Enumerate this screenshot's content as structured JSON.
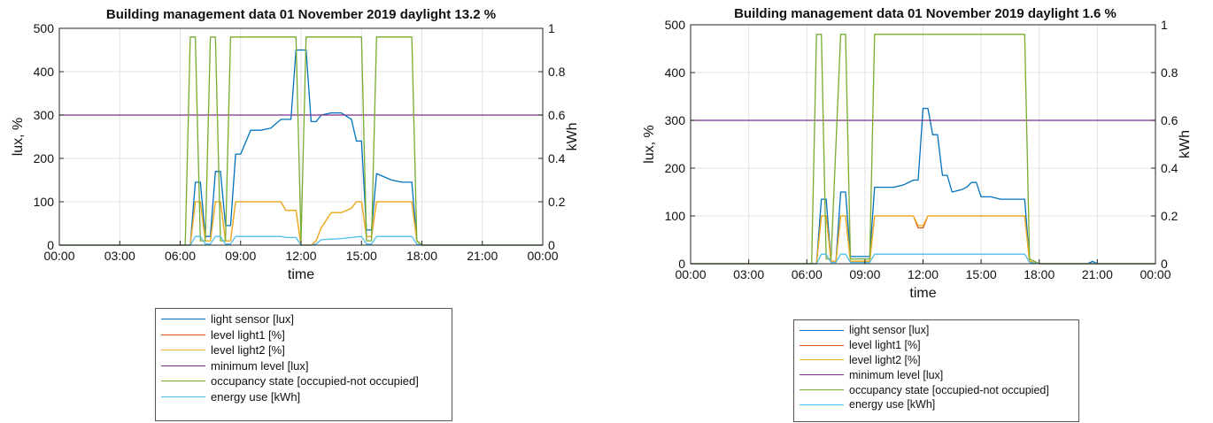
{
  "chart_data": [
    {
      "type": "line",
      "title": "Building management data 01 November 2019    daylight 13.2 %",
      "xlabel": "time",
      "ylabel": "lux, %",
      "y2label": "kWh",
      "xlim": [
        0,
        24
      ],
      "ylim": [
        0,
        500
      ],
      "y2lim": [
        0,
        1
      ],
      "grid": true,
      "legend_position": "bottom, outside",
      "x_tick_labels": [
        "00:00",
        "03:00",
        "06:00",
        "09:00",
        "12:00",
        "15:00",
        "18:00",
        "21:00",
        "00:00"
      ],
      "y_tick_labels": [
        "0",
        "100",
        "200",
        "300",
        "400",
        "500"
      ],
      "y2_tick_labels": [
        "0",
        "0.2",
        "0.4",
        "0.6",
        "0.8",
        "1"
      ],
      "series": [
        {
          "name": "light sensor [lux]",
          "color": "#0072BD",
          "axis": "left",
          "x": [
            0,
            6.5,
            6.75,
            7.0,
            7.25,
            7.5,
            7.75,
            8.0,
            8.25,
            8.5,
            8.75,
            9.0,
            9.5,
            10.0,
            10.5,
            11.0,
            11.5,
            11.75,
            12.0,
            12.25,
            12.5,
            12.75,
            13.0,
            13.5,
            14.0,
            14.5,
            14.75,
            15.0,
            15.25,
            15.5,
            15.75,
            16.0,
            16.5,
            17.0,
            17.5,
            17.75,
            18.0,
            24
          ],
          "y": [
            0,
            0,
            145,
            145,
            20,
            20,
            170,
            170,
            45,
            45,
            210,
            210,
            265,
            265,
            270,
            290,
            290,
            450,
            450,
            450,
            285,
            285,
            300,
            305,
            305,
            290,
            240,
            240,
            35,
            35,
            165,
            160,
            150,
            145,
            145,
            10,
            0,
            0
          ]
        },
        {
          "name": "level light1 [%]",
          "color": "#D95319",
          "axis": "left",
          "x": [
            0,
            6.5,
            6.75,
            7.0,
            7.25,
            7.5,
            7.75,
            8.0,
            8.25,
            8.5,
            8.75,
            11.0,
            11.25,
            11.75,
            12.0,
            12.25,
            12.5,
            12.75,
            13.0,
            13.5,
            14.0,
            14.5,
            14.75,
            15.0,
            15.25,
            15.5,
            15.75,
            16.0,
            17.5,
            17.75,
            18.0,
            24
          ],
          "y": [
            0,
            0,
            100,
            100,
            10,
            10,
            100,
            100,
            10,
            10,
            100,
            100,
            80,
            80,
            0,
            0,
            0,
            10,
            40,
            75,
            75,
            85,
            100,
            100,
            20,
            20,
            100,
            100,
            100,
            10,
            0,
            0
          ]
        },
        {
          "name": "level light2 [%]",
          "color": "#EDB120",
          "axis": "left",
          "x": [
            0,
            6.5,
            6.75,
            7.0,
            7.25,
            7.5,
            7.75,
            8.0,
            8.25,
            8.5,
            8.75,
            11.0,
            11.25,
            11.75,
            12.0,
            12.25,
            12.5,
            12.75,
            13.0,
            13.5,
            14.0,
            14.5,
            14.75,
            15.0,
            15.25,
            15.5,
            15.75,
            16.0,
            17.5,
            17.75,
            18.0,
            24
          ],
          "y": [
            0,
            0,
            100,
            100,
            10,
            10,
            100,
            100,
            10,
            10,
            100,
            100,
            80,
            80,
            0,
            0,
            0,
            10,
            40,
            75,
            75,
            85,
            100,
            100,
            20,
            20,
            100,
            100,
            100,
            10,
            0,
            0
          ]
        },
        {
          "name": "minimum level [lux]",
          "color": "#7E2F8E",
          "axis": "left",
          "x": [
            0,
            24
          ],
          "y": [
            300,
            300
          ]
        },
        {
          "name": "occupancy state [occupied-not occupied]",
          "color": "#77AC30",
          "axis": "right",
          "x": [
            0,
            6.25,
            6.5,
            6.75,
            7.0,
            7.25,
            7.5,
            7.75,
            8.0,
            8.25,
            8.5,
            8.75,
            11.75,
            12.0,
            12.25,
            12.5,
            15.0,
            15.25,
            15.5,
            15.75,
            17.5,
            17.75,
            18.0,
            24
          ],
          "y": [
            0,
            0,
            0.96,
            0.96,
            0.02,
            0.02,
            0.96,
            0.96,
            0.02,
            0.02,
            0.96,
            0.96,
            0.96,
            0.02,
            0.96,
            0.96,
            0.96,
            0.02,
            0.02,
            0.96,
            0.96,
            0.02,
            0,
            0
          ]
        },
        {
          "name": "energy use [kWh]",
          "color": "#4DBEEE",
          "axis": "right",
          "x": [
            0,
            6.5,
            6.75,
            7.0,
            7.25,
            7.5,
            7.75,
            8.0,
            8.25,
            8.5,
            8.75,
            11.0,
            11.25,
            11.75,
            12.0,
            12.25,
            12.5,
            12.75,
            13.0,
            14.0,
            14.5,
            15.0,
            15.25,
            15.5,
            15.75,
            16.0,
            17.5,
            17.75,
            18.0,
            24
          ],
          "y": [
            0,
            0,
            0.04,
            0.04,
            0.005,
            0.005,
            0.04,
            0.04,
            0.005,
            0.005,
            0.04,
            0.04,
            0.035,
            0.035,
            0,
            0,
            0,
            0.005,
            0.025,
            0.03,
            0.035,
            0.04,
            0.005,
            0.005,
            0.04,
            0.04,
            0.04,
            0.005,
            0,
            0
          ]
        }
      ]
    },
    {
      "type": "line",
      "title": "Building management data 01 November 2019    daylight 1.6 %",
      "xlabel": "time",
      "ylabel": "lux, %",
      "y2label": "kWh",
      "xlim": [
        0,
        24
      ],
      "ylim": [
        0,
        500
      ],
      "y2lim": [
        0,
        1
      ],
      "grid": true,
      "legend_position": "bottom, outside",
      "x_tick_labels": [
        "00:00",
        "03:00",
        "06:00",
        "09:00",
        "12:00",
        "15:00",
        "18:00",
        "21:00",
        "00:00"
      ],
      "y_tick_labels": [
        "0",
        "100",
        "200",
        "300",
        "400",
        "500"
      ],
      "y2_tick_labels": [
        "0",
        "0.2",
        "0.4",
        "0.6",
        "0.8",
        "1"
      ],
      "series": [
        {
          "name": "light sensor [lux]",
          "color": "#0072BD",
          "axis": "left",
          "x": [
            0,
            6.5,
            6.75,
            7.0,
            7.25,
            7.5,
            7.75,
            8.0,
            8.25,
            8.5,
            8.75,
            9.25,
            9.5,
            10.0,
            10.5,
            11.0,
            11.5,
            11.75,
            12.0,
            12.25,
            12.5,
            12.75,
            13.0,
            13.25,
            13.5,
            14.0,
            14.25,
            14.5,
            14.75,
            15.0,
            15.5,
            16.0,
            16.5,
            17.0,
            17.25,
            17.5,
            18.0,
            20.5,
            20.75,
            21.0,
            24
          ],
          "y": [
            0,
            0,
            135,
            135,
            5,
            5,
            150,
            150,
            15,
            15,
            15,
            15,
            160,
            160,
            160,
            165,
            175,
            175,
            325,
            325,
            270,
            270,
            185,
            185,
            150,
            155,
            160,
            170,
            170,
            140,
            140,
            135,
            135,
            135,
            135,
            5,
            0,
            0,
            5,
            0,
            0
          ]
        },
        {
          "name": "level light1 [%]",
          "color": "#D95319",
          "axis": "left",
          "x": [
            0,
            6.5,
            6.75,
            7.0,
            7.25,
            7.5,
            7.75,
            8.0,
            8.25,
            8.5,
            9.25,
            9.5,
            11.5,
            11.75,
            12.0,
            12.25,
            12.5,
            17.25,
            17.5,
            18.0,
            24
          ],
          "y": [
            0,
            0,
            100,
            100,
            5,
            5,
            100,
            100,
            5,
            5,
            5,
            100,
            100,
            75,
            75,
            100,
            100,
            100,
            5,
            0,
            0
          ]
        },
        {
          "name": "level light2 [%]",
          "color": "#EDB120",
          "axis": "left",
          "x": [
            0,
            6.5,
            6.75,
            7.0,
            7.25,
            7.5,
            7.75,
            8.0,
            8.25,
            8.5,
            9.25,
            9.5,
            11.5,
            11.75,
            12.0,
            12.25,
            12.5,
            17.25,
            17.5,
            18.0,
            24
          ],
          "y": [
            0,
            0,
            100,
            100,
            5,
            5,
            100,
            100,
            5,
            5,
            5,
            100,
            100,
            80,
            80,
            100,
            100,
            100,
            5,
            0,
            0
          ]
        },
        {
          "name": "minimum level [lux]",
          "color": "#7E2F8E",
          "axis": "left",
          "x": [
            0,
            24
          ],
          "y": [
            300,
            300
          ]
        },
        {
          "name": "occupancy state [occupied-not occupied]",
          "color": "#77AC30",
          "axis": "right",
          "x": [
            0,
            6.25,
            6.5,
            6.75,
            7.0,
            7.25,
            7.75,
            8.0,
            8.25,
            8.5,
            9.25,
            9.5,
            17.25,
            17.5,
            18.0,
            24
          ],
          "y": [
            0,
            0,
            0.96,
            0.96,
            0.02,
            0.02,
            0.96,
            0.96,
            0.02,
            0.02,
            0.02,
            0.96,
            0.96,
            0.02,
            0,
            0
          ]
        },
        {
          "name": "energy use [kWh]",
          "color": "#4DBEEE",
          "axis": "right",
          "x": [
            0,
            6.5,
            6.75,
            7.0,
            7.25,
            7.5,
            7.75,
            8.0,
            8.25,
            8.5,
            9.25,
            9.5,
            17.25,
            17.5,
            18.0,
            24
          ],
          "y": [
            0,
            0,
            0.04,
            0.04,
            0.005,
            0.005,
            0.04,
            0.04,
            0.005,
            0.005,
            0.005,
            0.04,
            0.04,
            0.005,
            0,
            0
          ]
        }
      ]
    }
  ]
}
